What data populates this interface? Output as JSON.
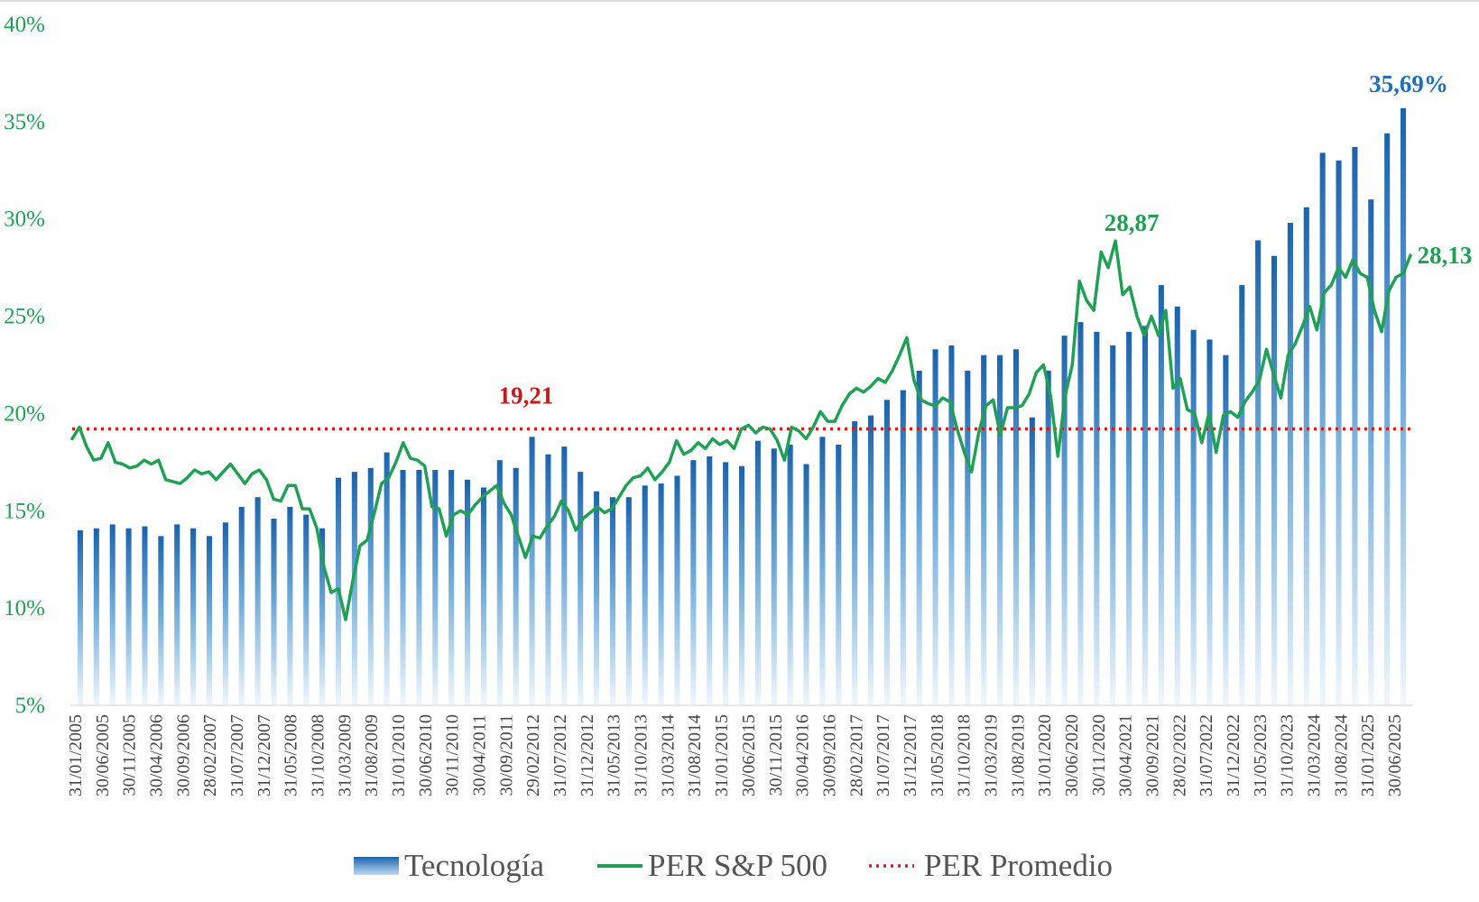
{
  "chart_data": {
    "type": "bar+line",
    "title": "",
    "xlabel": "",
    "ylabel": "",
    "ylim": [
      5,
      40
    ],
    "y_ticks": [
      {
        "value": 5,
        "label": "5%"
      },
      {
        "value": 10,
        "label": "10%"
      },
      {
        "value": 15,
        "label": "15%"
      },
      {
        "value": 20,
        "label": "20%"
      },
      {
        "value": 25,
        "label": "25%"
      },
      {
        "value": 30,
        "label": "30%"
      },
      {
        "value": 35,
        "label": "35%"
      },
      {
        "value": 40,
        "label": "40%"
      }
    ],
    "x_tick_labels": [
      "31/01/2005",
      "30/06/2005",
      "30/11/2005",
      "30/04/2006",
      "30/09/2006",
      "28/02/2007",
      "31/07/2007",
      "31/12/2007",
      "31/05/2008",
      "31/10/2008",
      "31/03/2009",
      "31/08/2009",
      "31/01/2010",
      "30/06/2010",
      "30/11/2010",
      "30/04/2011",
      "30/09/2011",
      "29/02/2012",
      "31/07/2012",
      "31/12/2012",
      "31/05/2013",
      "31/10/2013",
      "31/03/2014",
      "31/08/2014",
      "31/01/2015",
      "30/06/2015",
      "30/11/2015",
      "30/04/2016",
      "30/09/2016",
      "28/02/2017",
      "31/07/2017",
      "31/12/2017",
      "31/05/2018",
      "31/10/2018",
      "31/03/2019",
      "31/08/2019",
      "31/01/2020",
      "30/06/2020",
      "30/11/2020",
      "30/04/2021",
      "30/09/2021",
      "28/02/2022",
      "31/07/2022",
      "31/12/2022",
      "31/05/2023",
      "31/10/2023",
      "31/03/2024",
      "31/08/2024",
      "31/01/2025",
      "30/06/2025"
    ],
    "grid": false,
    "legend_position": "bottom",
    "series": [
      {
        "name": "Tecnología",
        "type": "bar",
        "color": "#1f6fb8",
        "values": [
          14.0,
          14.1,
          14.3,
          14.1,
          14.2,
          13.7,
          14.3,
          14.1,
          13.7,
          14.4,
          15.2,
          15.7,
          14.6,
          15.2,
          14.8,
          14.1,
          16.7,
          17.0,
          17.2,
          18.0,
          17.1,
          17.1,
          17.1,
          17.1,
          16.6,
          16.2,
          17.6,
          17.2,
          18.8,
          17.9,
          18.3,
          17.0,
          16.0,
          15.7,
          15.7,
          16.3,
          16.4,
          16.8,
          17.6,
          17.8,
          17.5,
          17.3,
          18.6,
          18.2,
          18.4,
          17.4,
          18.8,
          18.4,
          19.6,
          19.9,
          20.7,
          21.2,
          22.2,
          23.3,
          23.5,
          22.2,
          23.0,
          23.0,
          23.3,
          19.8,
          22.2,
          24.0,
          24.7,
          24.2,
          23.5,
          24.2,
          24.5,
          26.6,
          25.5,
          24.3,
          23.8,
          23.0,
          26.6,
          28.9,
          28.1,
          29.8,
          30.6,
          33.4,
          33.0,
          33.7,
          31.0,
          34.4,
          35.69
        ]
      },
      {
        "name": "PER S&P 500",
        "type": "line",
        "color": "#1fa055",
        "values": [
          18.7,
          19.3,
          18.3,
          17.6,
          17.7,
          18.5,
          17.5,
          17.4,
          17.2,
          17.3,
          17.6,
          17.4,
          17.6,
          16.6,
          16.5,
          16.4,
          16.7,
          17.1,
          16.9,
          17.0,
          16.6,
          17.0,
          17.4,
          16.9,
          16.4,
          16.9,
          17.1,
          16.6,
          15.6,
          15.5,
          16.3,
          16.3,
          15.1,
          15.1,
          14.1,
          12.1,
          10.8,
          11.0,
          9.4,
          11.4,
          13.2,
          13.5,
          14.9,
          16.4,
          16.7,
          17.5,
          18.5,
          17.7,
          17.6,
          17.3,
          15.2,
          15.1,
          13.7,
          14.8,
          15.0,
          14.8,
          15.3,
          15.7,
          16.0,
          16.3,
          15.4,
          14.8,
          13.7,
          12.6,
          13.7,
          13.6,
          14.2,
          14.7,
          15.5,
          15.0,
          14.0,
          14.6,
          14.9,
          15.2,
          14.9,
          15.1,
          15.7,
          16.3,
          16.7,
          16.8,
          17.2,
          16.6,
          17.0,
          17.5,
          18.6,
          17.9,
          18.1,
          18.5,
          18.2,
          18.7,
          18.4,
          18.6,
          18.2,
          19.2,
          19.4,
          19.0,
          19.3,
          19.2,
          18.6,
          17.6,
          19.3,
          19.1,
          18.7,
          19.3,
          20.1,
          19.6,
          19.6,
          20.4,
          21.0,
          21.3,
          21.1,
          21.4,
          21.8,
          21.6,
          22.2,
          23.0,
          23.9,
          21.7,
          20.7,
          20.5,
          20.4,
          20.8,
          20.6,
          19.2,
          18.0,
          17.0,
          19.0,
          20.4,
          20.7,
          18.9,
          20.3,
          20.3,
          20.4,
          21.0,
          22.1,
          22.5,
          20.9,
          17.8,
          20.9,
          22.5,
          26.8,
          25.8,
          25.3,
          28.3,
          27.5,
          28.87,
          26.1,
          26.5,
          25.0,
          24.0,
          25.0,
          24.0,
          25.3,
          21.3,
          21.8,
          20.2,
          20.0,
          18.5,
          20.0,
          18.0,
          19.9,
          20.1,
          19.8,
          20.6,
          21.1,
          21.7,
          23.3,
          22.0,
          20.8,
          23.0,
          23.6,
          24.5,
          25.5,
          24.3,
          26.2,
          26.6,
          27.5,
          27.0,
          27.9,
          27.2,
          27.0,
          25.3,
          24.2,
          26.3,
          27.0,
          27.2,
          28.13
        ]
      },
      {
        "name": "PER Promedio",
        "type": "hline",
        "color": "#d21e1e",
        "value": 19.21
      }
    ],
    "annotations": [
      {
        "text": "19,21",
        "series": "PER Promedio",
        "color": "#c41a1a"
      },
      {
        "text": "28,87",
        "series": "PER S&P 500",
        "color": "#1fa055"
      },
      {
        "text": "28,13",
        "series": "PER S&P 500",
        "color": "#1fa055"
      },
      {
        "text": "35,69%",
        "series": "Tecnología",
        "color": "#1f6fb8"
      }
    ]
  }
}
